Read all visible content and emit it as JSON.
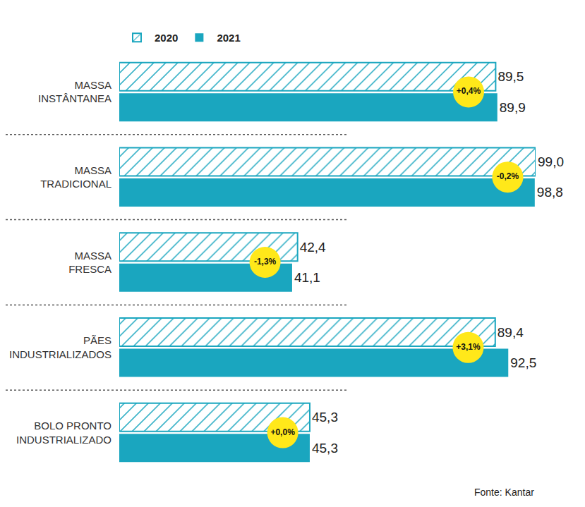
{
  "chart_data": {
    "type": "bar",
    "orientation": "horizontal",
    "categories": [
      "MASSA INSTÂNTANEA",
      "MASSA TRADICIONAL",
      "MASSA FRESCA",
      "PÃES INDUSTRIALIZADOS",
      "BOLO PRONTO INDUSTRIALIZADO"
    ],
    "series": [
      {
        "name": "2020",
        "color": "#1aa6bf",
        "marker": "hatched",
        "values": [
          89.5,
          99.0,
          42.4,
          89.4,
          45.3
        ],
        "value_labels": [
          "89,5",
          "99,0",
          "42,4",
          "89,4",
          "45,3"
        ]
      },
      {
        "name": "2021",
        "color": "#1aa6bf",
        "marker": "solid",
        "values": [
          89.9,
          98.8,
          41.1,
          92.5,
          45.3
        ],
        "value_labels": [
          "89,9",
          "98,8",
          "41,1",
          "92,5",
          "45,3"
        ]
      }
    ],
    "change": {
      "values": [
        0.4,
        -0.2,
        -1.3,
        3.1,
        0.0
      ],
      "value_labels": [
        "+0,4%",
        "-0,2%",
        "-1,3%",
        "+3,1%",
        "+0,0%"
      ]
    },
    "data_labels": true,
    "tick_labels": "y",
    "legend": "top",
    "grid": false,
    "source": "Fonte: Kantar"
  }
}
